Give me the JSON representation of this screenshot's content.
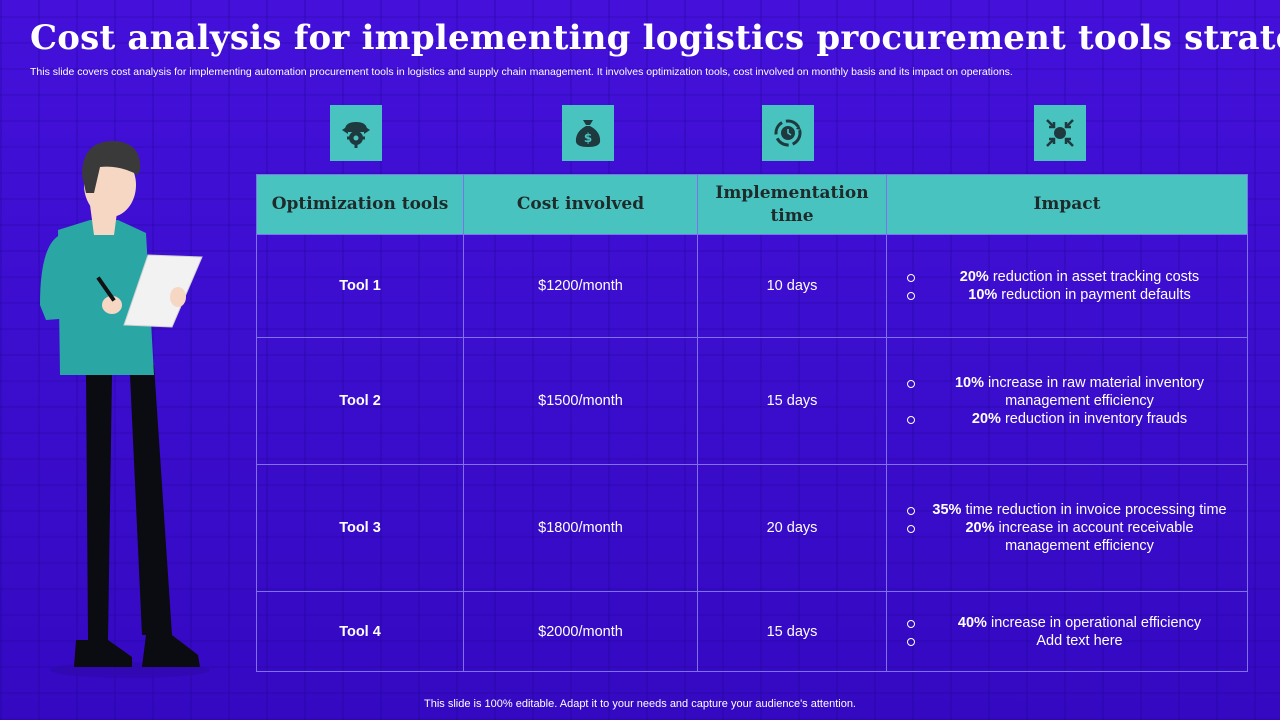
{
  "title": "Cost analysis for implementing logistics procurement tools strategy",
  "subtitle": "This slide covers cost analysis for implementing automation procurement tools in logistics and supply chain management. It involves optimization tools, cost involved on monthly basis and its impact on operations.",
  "icons": [
    "gear-settings-icon",
    "money-bag-icon",
    "cycle-time-icon",
    "impact-arrows-icon"
  ],
  "colors": {
    "background": "#3b0fd0",
    "accent": "#49c3c0",
    "header_text": "#1f2a2a"
  },
  "table": {
    "headers": [
      "Optimization tools",
      "Cost involved",
      "Implementation time",
      "Impact"
    ],
    "rows": [
      {
        "tool": "Tool 1",
        "cost": "$1200/month",
        "time": "10 days",
        "impact": [
          {
            "bold": "20%",
            "text": " reduction in asset tracking costs"
          },
          {
            "bold": "10%",
            "text": " reduction in payment defaults"
          }
        ]
      },
      {
        "tool": "Tool 2",
        "cost": "$1500/month",
        "time": "15 days",
        "impact": [
          {
            "bold": "10%",
            "text": " increase in raw material inventory management efficiency"
          },
          {
            "bold": "20%",
            "text": " reduction in inventory frauds"
          }
        ]
      },
      {
        "tool": "Tool 3",
        "cost": "$1800/month",
        "time": "20 days",
        "impact": [
          {
            "bold": "35%",
            "text": " time reduction in invoice processing time"
          },
          {
            "bold": "20%",
            "text": " increase in account receivable management efficiency"
          }
        ]
      },
      {
        "tool": "Tool 4",
        "cost": "$2000/month",
        "time": "15 days",
        "impact": [
          {
            "bold": "40%",
            "text": " increase in operational efficiency"
          },
          {
            "bold": "",
            "text": "Add text here"
          }
        ]
      }
    ]
  },
  "footer": "This slide is 100% editable. Adapt it to your needs and capture your audience's attention."
}
